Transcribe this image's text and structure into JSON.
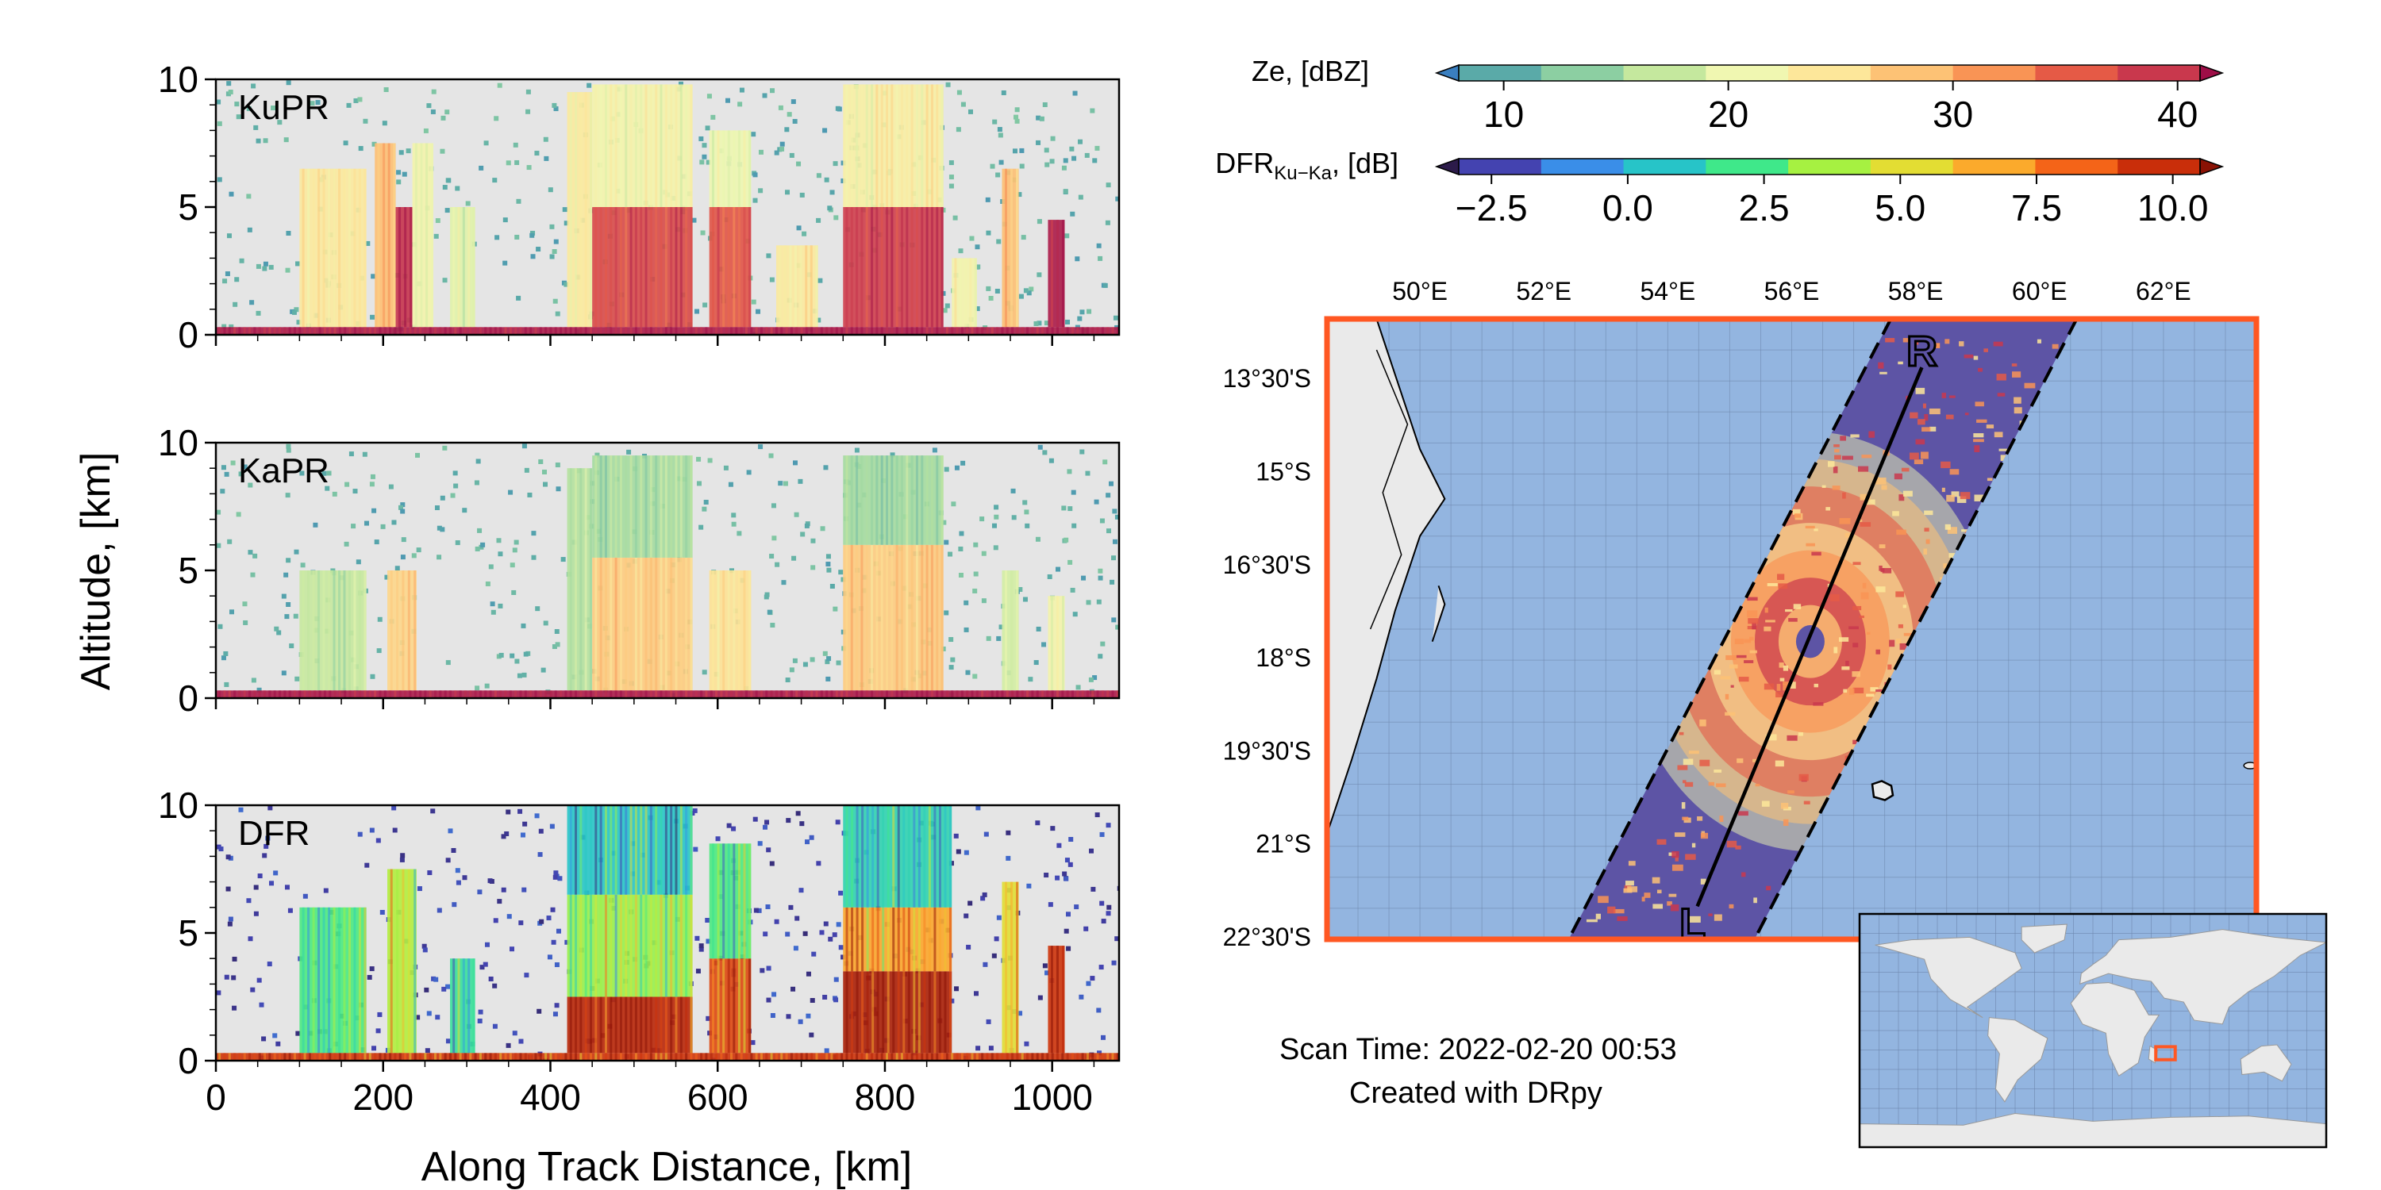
{
  "chart_data": [
    {
      "type": "heatmap",
      "panel": "KuPR",
      "label": "KuPR",
      "field": "Ze",
      "xlim": [
        0,
        1080
      ],
      "ylim": [
        0,
        10
      ],
      "yticks": [
        0,
        5,
        10
      ],
      "grid": false,
      "cells": [
        [
          100,
          180,
          0.3,
          6.5,
          24
        ],
        [
          190,
          215,
          0.3,
          7.5,
          28
        ],
        [
          215,
          235,
          0.3,
          5.0,
          38
        ],
        [
          235,
          260,
          0.3,
          7.5,
          22
        ],
        [
          280,
          310,
          0.3,
          5.0,
          20
        ],
        [
          420,
          450,
          0.3,
          9.5,
          24
        ],
        [
          450,
          570,
          0.3,
          5.0,
          36
        ],
        [
          450,
          570,
          5.0,
          9.8,
          22
        ],
        [
          590,
          640,
          0.3,
          5.0,
          35
        ],
        [
          590,
          640,
          5.0,
          8.0,
          21
        ],
        [
          670,
          720,
          0.3,
          3.5,
          24
        ],
        [
          750,
          870,
          0.3,
          5.0,
          37
        ],
        [
          750,
          870,
          5.0,
          9.8,
          23
        ],
        [
          880,
          910,
          0.3,
          3.0,
          22
        ],
        [
          940,
          960,
          0.3,
          6.5,
          28
        ],
        [
          995,
          1015,
          0.3,
          4.5,
          40
        ],
        [
          0,
          1080,
          0.0,
          0.3,
          40
        ]
      ]
    },
    {
      "type": "heatmap",
      "panel": "KaPR",
      "label": "KaPR",
      "field": "Ze",
      "xlim": [
        0,
        1080
      ],
      "ylim": [
        0,
        10
      ],
      "yticks": [
        0,
        5,
        10
      ],
      "grid": false,
      "cells": [
        [
          100,
          180,
          0.3,
          5.0,
          18
        ],
        [
          205,
          240,
          0.3,
          5.0,
          26
        ],
        [
          420,
          450,
          0.3,
          9.0,
          17
        ],
        [
          450,
          570,
          0.3,
          5.5,
          27
        ],
        [
          450,
          570,
          5.5,
          9.5,
          16
        ],
        [
          590,
          640,
          0.3,
          5.0,
          25
        ],
        [
          750,
          870,
          0.3,
          6.0,
          27
        ],
        [
          750,
          870,
          6.0,
          9.5,
          16
        ],
        [
          940,
          960,
          0.3,
          5.0,
          19
        ],
        [
          995,
          1015,
          0.3,
          4.0,
          22
        ],
        [
          0,
          1080,
          0.0,
          0.3,
          40
        ]
      ]
    },
    {
      "type": "heatmap",
      "panel": "DFR",
      "label": "DFR",
      "field": "DFR",
      "xlim": [
        0,
        1080
      ],
      "ylim": [
        0,
        10
      ],
      "yticks": [
        0,
        5,
        10
      ],
      "xticks": [
        0,
        200,
        400,
        600,
        800,
        1000
      ],
      "xlabel": "Along Track Distance, [km]",
      "grid": false,
      "cells": [
        [
          100,
          180,
          0.3,
          6.0,
          2.5
        ],
        [
          205,
          240,
          0.3,
          7.5,
          4.0
        ],
        [
          280,
          310,
          0.3,
          4.0,
          2.0
        ],
        [
          420,
          570,
          0.3,
          2.5,
          9.5
        ],
        [
          420,
          570,
          2.5,
          6.5,
          3.5
        ],
        [
          420,
          570,
          6.5,
          10.0,
          1.0
        ],
        [
          590,
          640,
          0.3,
          4.0,
          8.5
        ],
        [
          590,
          640,
          4.0,
          8.5,
          2.5
        ],
        [
          750,
          880,
          0.3,
          3.5,
          9.8
        ],
        [
          750,
          880,
          3.5,
          6.0,
          6.5
        ],
        [
          750,
          880,
          6.0,
          10.0,
          1.5
        ],
        [
          940,
          960,
          0.3,
          7.0,
          5.0
        ],
        [
          995,
          1015,
          0.3,
          4.5,
          9.0
        ],
        [
          0,
          1080,
          0.0,
          0.3,
          9.0
        ]
      ]
    },
    {
      "type": "map",
      "lon_ticks": [
        "50°E",
        "52°E",
        "54°E",
        "56°E",
        "58°E",
        "60°E",
        "62°E"
      ],
      "lon_tick_values": [
        50,
        52,
        54,
        56,
        58,
        60,
        62
      ],
      "lat_ticks": [
        "13°30'S",
        "15°S",
        "16°30'S",
        "18°S",
        "19°30'S",
        "21°S",
        "22°30'S"
      ],
      "lat_tick_values": [
        -13.5,
        -15,
        -16.5,
        -18,
        -19.5,
        -21,
        -22.5
      ],
      "lon_range": [
        48.5,
        63.5
      ],
      "lat_range": [
        -12.5,
        -22.5
      ],
      "swath_corners_lonlat": [
        [
          57.6,
          -12.5
        ],
        [
          60.6,
          -12.5
        ],
        [
          55.4,
          -22.5
        ],
        [
          52.4,
          -22.5
        ]
      ],
      "track_start_label": "R",
      "track_start_lonlat": [
        58.1,
        -13.0
      ],
      "track_end_label": "L",
      "track_end_lonlat": [
        54.4,
        -22.3
      ],
      "storm_center_lonlat": [
        56.3,
        -17.7
      ],
      "land_color": "#eaeaea",
      "ocean_color": "#93b5e0",
      "swath_color": "#5d54a5",
      "border_color": "#ff5722"
    }
  ],
  "ylabel": "Altitude, [km]",
  "colorbars": [
    {
      "label": "Ze, [dBZ]",
      "ticks": [
        "10",
        "20",
        "30",
        "40"
      ],
      "range": [
        8,
        41
      ],
      "colors": [
        "#3a7fc0",
        "#5aaaa8",
        "#8ccfa2",
        "#c5e89e",
        "#f0f7b1",
        "#fde79a",
        "#fdc275",
        "#f99455",
        "#e55a46",
        "#c9384d",
        "#9e0e47"
      ]
    },
    {
      "label": "DFRKu−Ka, [dB]",
      "label_main": "DFR",
      "label_sub": "Ku−Ka",
      "label_rest": ", [dB]",
      "ticks": [
        "−2.5",
        "0.0",
        "2.5",
        "5.0",
        "7.5",
        "10.0"
      ],
      "range": [
        -3.1,
        10.5
      ],
      "colors": [
        "#2c1b4a",
        "#4443b0",
        "#3a8ee8",
        "#27c4c8",
        "#3fe88a",
        "#a6f141",
        "#e3dd33",
        "#fbaa2c",
        "#f46418",
        "#c92e0a",
        "#8a1205"
      ]
    }
  ],
  "captions": {
    "scan_time": "Scan Time: 2022-02-20 00:53",
    "created_with": "Created with DRpy"
  },
  "inset": {
    "description": "world overview",
    "land_color": "#eaeaea",
    "ocean_color": "#93b5e0",
    "highlight_color": "#ff5722"
  }
}
